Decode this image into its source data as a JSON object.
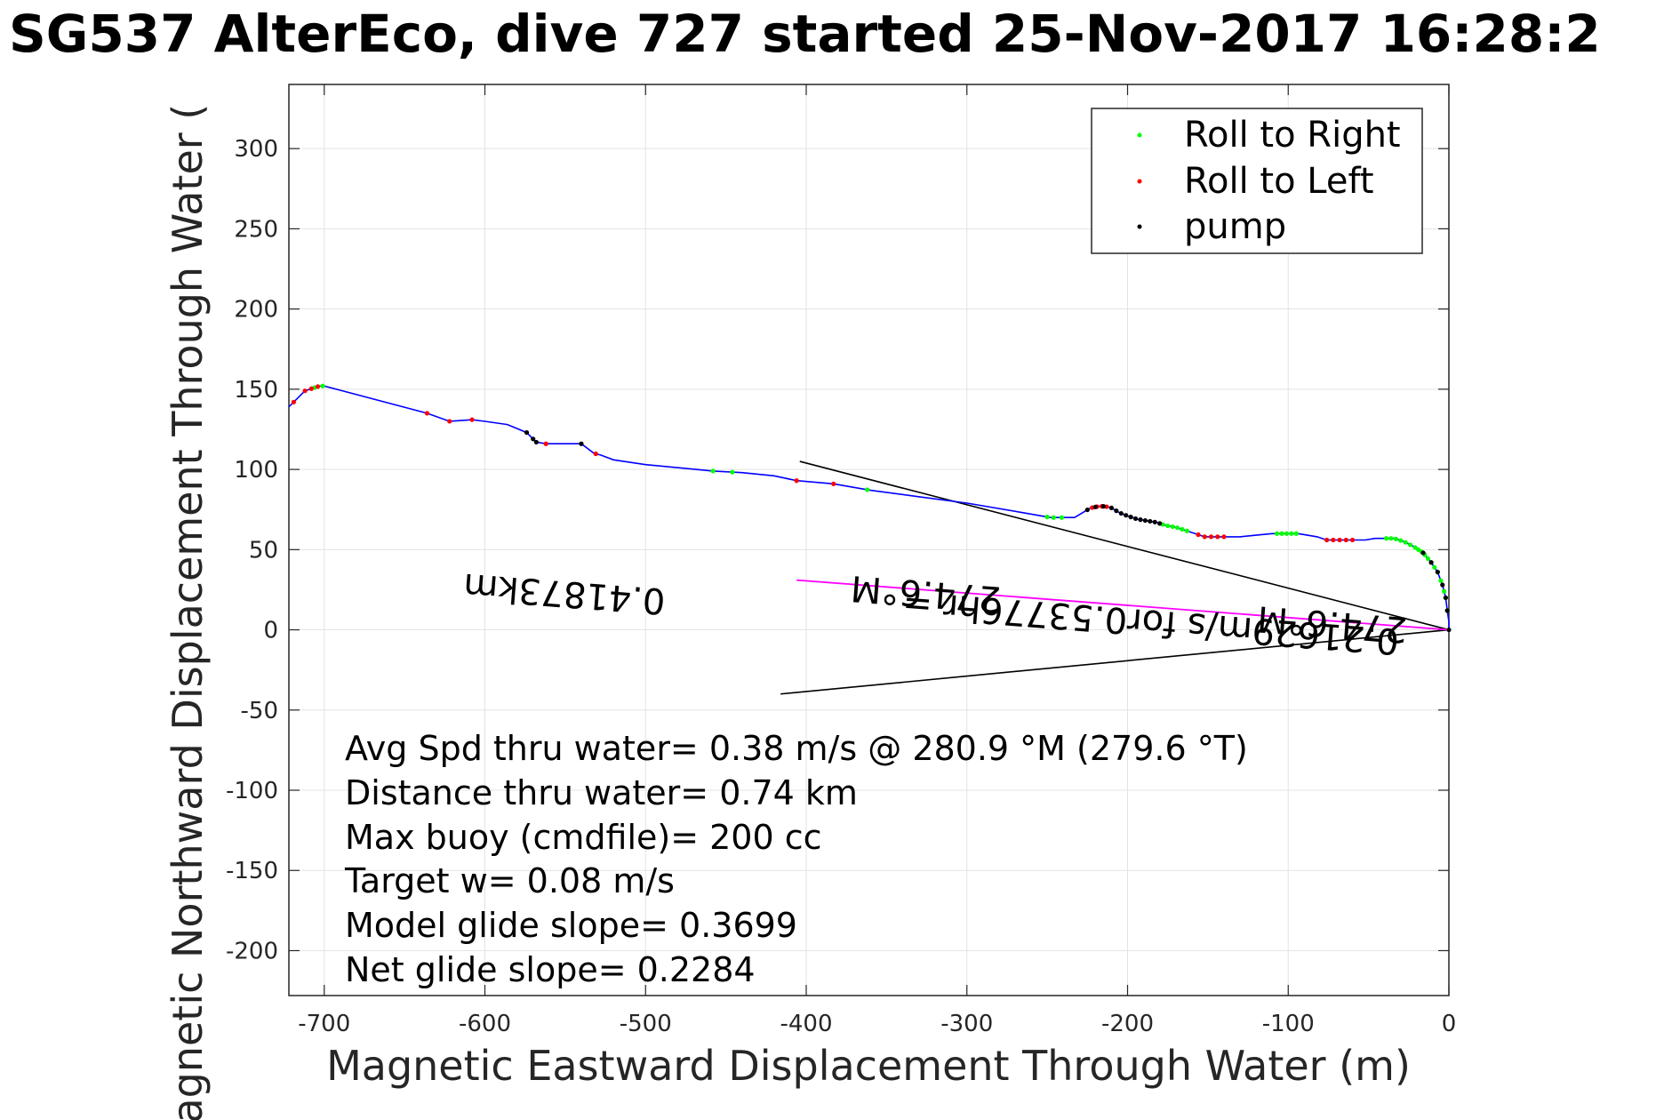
{
  "chart_data": {
    "type": "line",
    "title": "SG537 AlterEco, dive 727 started 25-Nov-2017 16:28:2",
    "xlabel": "Magnetic Eastward Displacement Through Water (m)",
    "ylabel": "Magnetic Northward Displacement Through Water (",
    "xlim": [
      -722,
      0
    ],
    "ylim": [
      -228,
      340
    ],
    "x_ticks": [
      -700,
      -600,
      -500,
      -400,
      -300,
      -200,
      -100,
      0
    ],
    "y_ticks": [
      -200,
      -150,
      -100,
      -50,
      0,
      50,
      100,
      150,
      200,
      250,
      300
    ],
    "grid": true,
    "legend": {
      "placement": "top-right",
      "entries": [
        {
          "label": "Roll to Right",
          "color": "#00ff00"
        },
        {
          "label": "Roll to Left",
          "color": "#ff0000"
        },
        {
          "label": "pump",
          "color": "#000000"
        }
      ]
    },
    "track": {
      "color": "#0000ff",
      "points": [
        [
          0,
          0
        ],
        [
          0,
          5
        ],
        [
          -1,
          12
        ],
        [
          -2,
          20
        ],
        [
          -4,
          28
        ],
        [
          -7,
          36
        ],
        [
          -11,
          42
        ],
        [
          -16,
          48
        ],
        [
          -22,
          52
        ],
        [
          -28,
          55
        ],
        [
          -34,
          57
        ],
        [
          -40,
          57
        ],
        [
          -46,
          57
        ],
        [
          -52,
          56
        ],
        [
          -58,
          56
        ],
        [
          -64,
          56
        ],
        [
          -70,
          56
        ],
        [
          -76,
          56
        ],
        [
          -82,
          58
        ],
        [
          -88,
          59
        ],
        [
          -94,
          60
        ],
        [
          -100,
          60
        ],
        [
          -110,
          60
        ],
        [
          -120,
          59
        ],
        [
          -130,
          58
        ],
        [
          -138,
          58
        ],
        [
          -146,
          58
        ],
        [
          -152,
          58
        ],
        [
          -158,
          60
        ],
        [
          -164,
          62
        ],
        [
          -170,
          64
        ],
        [
          -176,
          65
        ],
        [
          -182,
          67
        ],
        [
          -188,
          68
        ],
        [
          -194,
          69
        ],
        [
          -200,
          71
        ],
        [
          -205,
          73
        ],
        [
          -210,
          76
        ],
        [
          -214,
          77
        ],
        [
          -218,
          77
        ],
        [
          -223,
          76
        ],
        [
          -228,
          73
        ],
        [
          -233,
          70
        ],
        [
          -240,
          70
        ],
        [
          -248,
          70
        ],
        [
          -265,
          73
        ],
        [
          -300,
          79
        ],
        [
          -330,
          83
        ],
        [
          -360,
          87
        ],
        [
          -383,
          91
        ],
        [
          -406,
          93
        ],
        [
          -420,
          96
        ],
        [
          -440,
          98
        ],
        [
          -458,
          99
        ],
        [
          -500,
          103
        ],
        [
          -520,
          106
        ],
        [
          -528,
          109
        ],
        [
          -532,
          110
        ],
        [
          -540,
          116
        ],
        [
          -550,
          116
        ],
        [
          -562,
          116
        ],
        [
          -568,
          117
        ],
        [
          -570,
          119
        ],
        [
          -574,
          123
        ],
        [
          -586,
          128
        ],
        [
          -600,
          130
        ],
        [
          -608,
          131
        ],
        [
          -622,
          130
        ],
        [
          -636,
          135
        ],
        [
          -700,
          152
        ],
        [
          -703,
          152
        ],
        [
          -706,
          151
        ],
        [
          -712,
          149
        ],
        [
          -716,
          145
        ],
        [
          -719,
          142
        ],
        [
          -722,
          139
        ]
      ]
    },
    "roll_right_x": [
      -1,
      -2,
      -3,
      -5,
      -7,
      -9,
      -11,
      -13,
      -15,
      -17,
      -19,
      -21,
      -24,
      -27,
      -30,
      -33,
      -36,
      -39,
      -95,
      -98,
      -101,
      -104,
      -107,
      -163,
      -166,
      -169,
      -172,
      -175,
      -178,
      -241,
      -246,
      -250,
      -362,
      -446,
      -458,
      -701,
      -706
    ],
    "roll_left_x": [
      -60,
      -64,
      -68,
      -72,
      -76,
      -140,
      -144,
      -148,
      -152,
      -156,
      -213,
      -216,
      -219,
      -222,
      -383,
      -406,
      -531,
      -562,
      -608,
      -622,
      -636,
      -704,
      -708,
      -712,
      -719
    ],
    "pump_x": [
      0,
      -1,
      -2,
      -4,
      -7,
      -11,
      -16,
      -180,
      -183,
      -186,
      -189,
      -192,
      -195,
      -198,
      -201,
      -204,
      -207,
      -210,
      -215,
      -220,
      -225,
      -540,
      -568,
      -570,
      -574
    ],
    "magenta_line": {
      "from": [
        0,
        0
      ],
      "to": [
        -406,
        31
      ],
      "color": "#ff00ff"
    },
    "wedge_lines": [
      {
        "from": [
          0,
          0
        ],
        "to": [
          -404,
          105
        ]
      },
      {
        "from": [
          0,
          0
        ],
        "to": [
          -416,
          -40
        ]
      }
    ],
    "rotated_labels": [
      {
        "text": "274.6°M",
        "x": -325,
        "y": 30,
        "angle_deg": 184.4
      },
      {
        "text": "0.41873km",
        "x": -550,
        "y": 30,
        "angle_deg": 184.4
      },
      {
        "text": "0.21629m/s for0.53776hr =",
        "x": -185,
        "y": 12,
        "angle_deg": 184.4
      },
      {
        "text": "274.6°M",
        "x": -72,
        "y": 11,
        "angle_deg": 184.4
      }
    ],
    "annotation_lines": [
      "Avg Spd thru water=  0.38 m/s @ 280.9 °M (279.6 °T)",
      "Distance thru water=  0.74 km",
      "Max buoy (cmdfile)= 200 cc",
      "Target w= 0.08 m/s",
      "Model glide slope= 0.3699",
      "Net glide slope= 0.2284"
    ]
  }
}
